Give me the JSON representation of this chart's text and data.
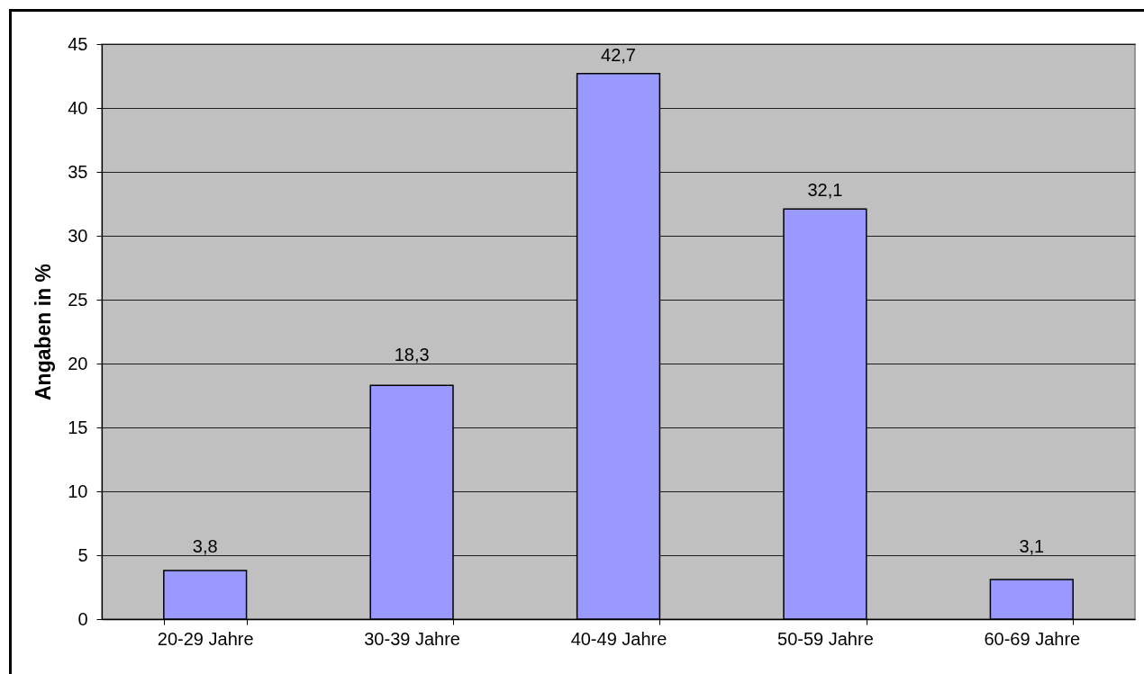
{
  "chart_data": {
    "type": "bar",
    "ylabel": "Angaben in %",
    "categories": [
      "20-29 Jahre",
      "30-39 Jahre",
      "40-49 Jahre",
      "50-59 Jahre",
      "60-69 Jahre"
    ],
    "values": [
      3.8,
      18.3,
      42.7,
      32.1,
      3.1
    ],
    "value_labels": [
      "3,8",
      "18,3",
      "42,7",
      "32,1",
      "3,1"
    ],
    "color": "#9999ff",
    "ylim": [
      0,
      45
    ],
    "yticks": [
      0,
      5,
      10,
      15,
      20,
      25,
      30,
      35,
      40,
      45
    ],
    "grid": "y"
  }
}
